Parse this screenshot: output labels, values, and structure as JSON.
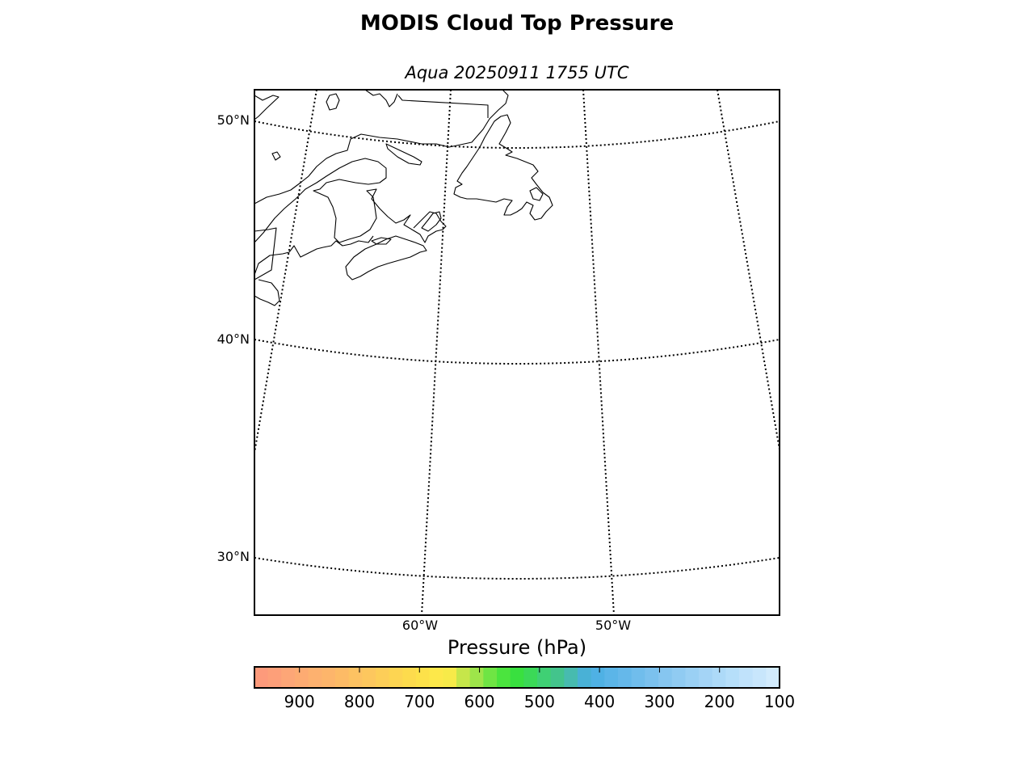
{
  "title": "MODIS Cloud Top Pressure",
  "subtitle": "Aqua 20250911 1755 UTC",
  "map": {
    "lat_labels": [
      "50°N",
      "40°N",
      "30°N"
    ],
    "lon_labels": [
      "60°W",
      "50°W"
    ],
    "graticule_style": "dotted",
    "coastline_color": "#000000",
    "region": "Northwest Atlantic, Canadian Maritimes and Newfoundland"
  },
  "colorbar": {
    "label": "Pressure (hPa)",
    "ticks": [
      "900",
      "800",
      "700",
      "600",
      "500",
      "400",
      "300",
      "200",
      "100"
    ],
    "range": [
      975,
      100
    ],
    "colors": [
      "#fd9a7b",
      "#fd9f79",
      "#fda677",
      "#fdab72",
      "#fdb16f",
      "#fdb56b",
      "#fdbb66",
      "#fdc262",
      "#fdc75e",
      "#fdce58",
      "#fdd552",
      "#fddb4d",
      "#fde14a",
      "#fde84a",
      "#f7ea49",
      "#c6e64a",
      "#9ee54a",
      "#6fe544",
      "#4be43e",
      "#39e03f",
      "#3bd957",
      "#3fd074",
      "#43c48c",
      "#47bbaf",
      "#49b1d6",
      "#4fb1e4",
      "#5bb5e8",
      "#65b8ea",
      "#70bdec",
      "#7bc1ee",
      "#86c6f0",
      "#90cbf2",
      "#9ad0f4",
      "#a4d4f6",
      "#addaf8",
      "#b6dffa",
      "#c0e2fb",
      "#c8e6fc",
      "#d2ebfd"
    ]
  }
}
